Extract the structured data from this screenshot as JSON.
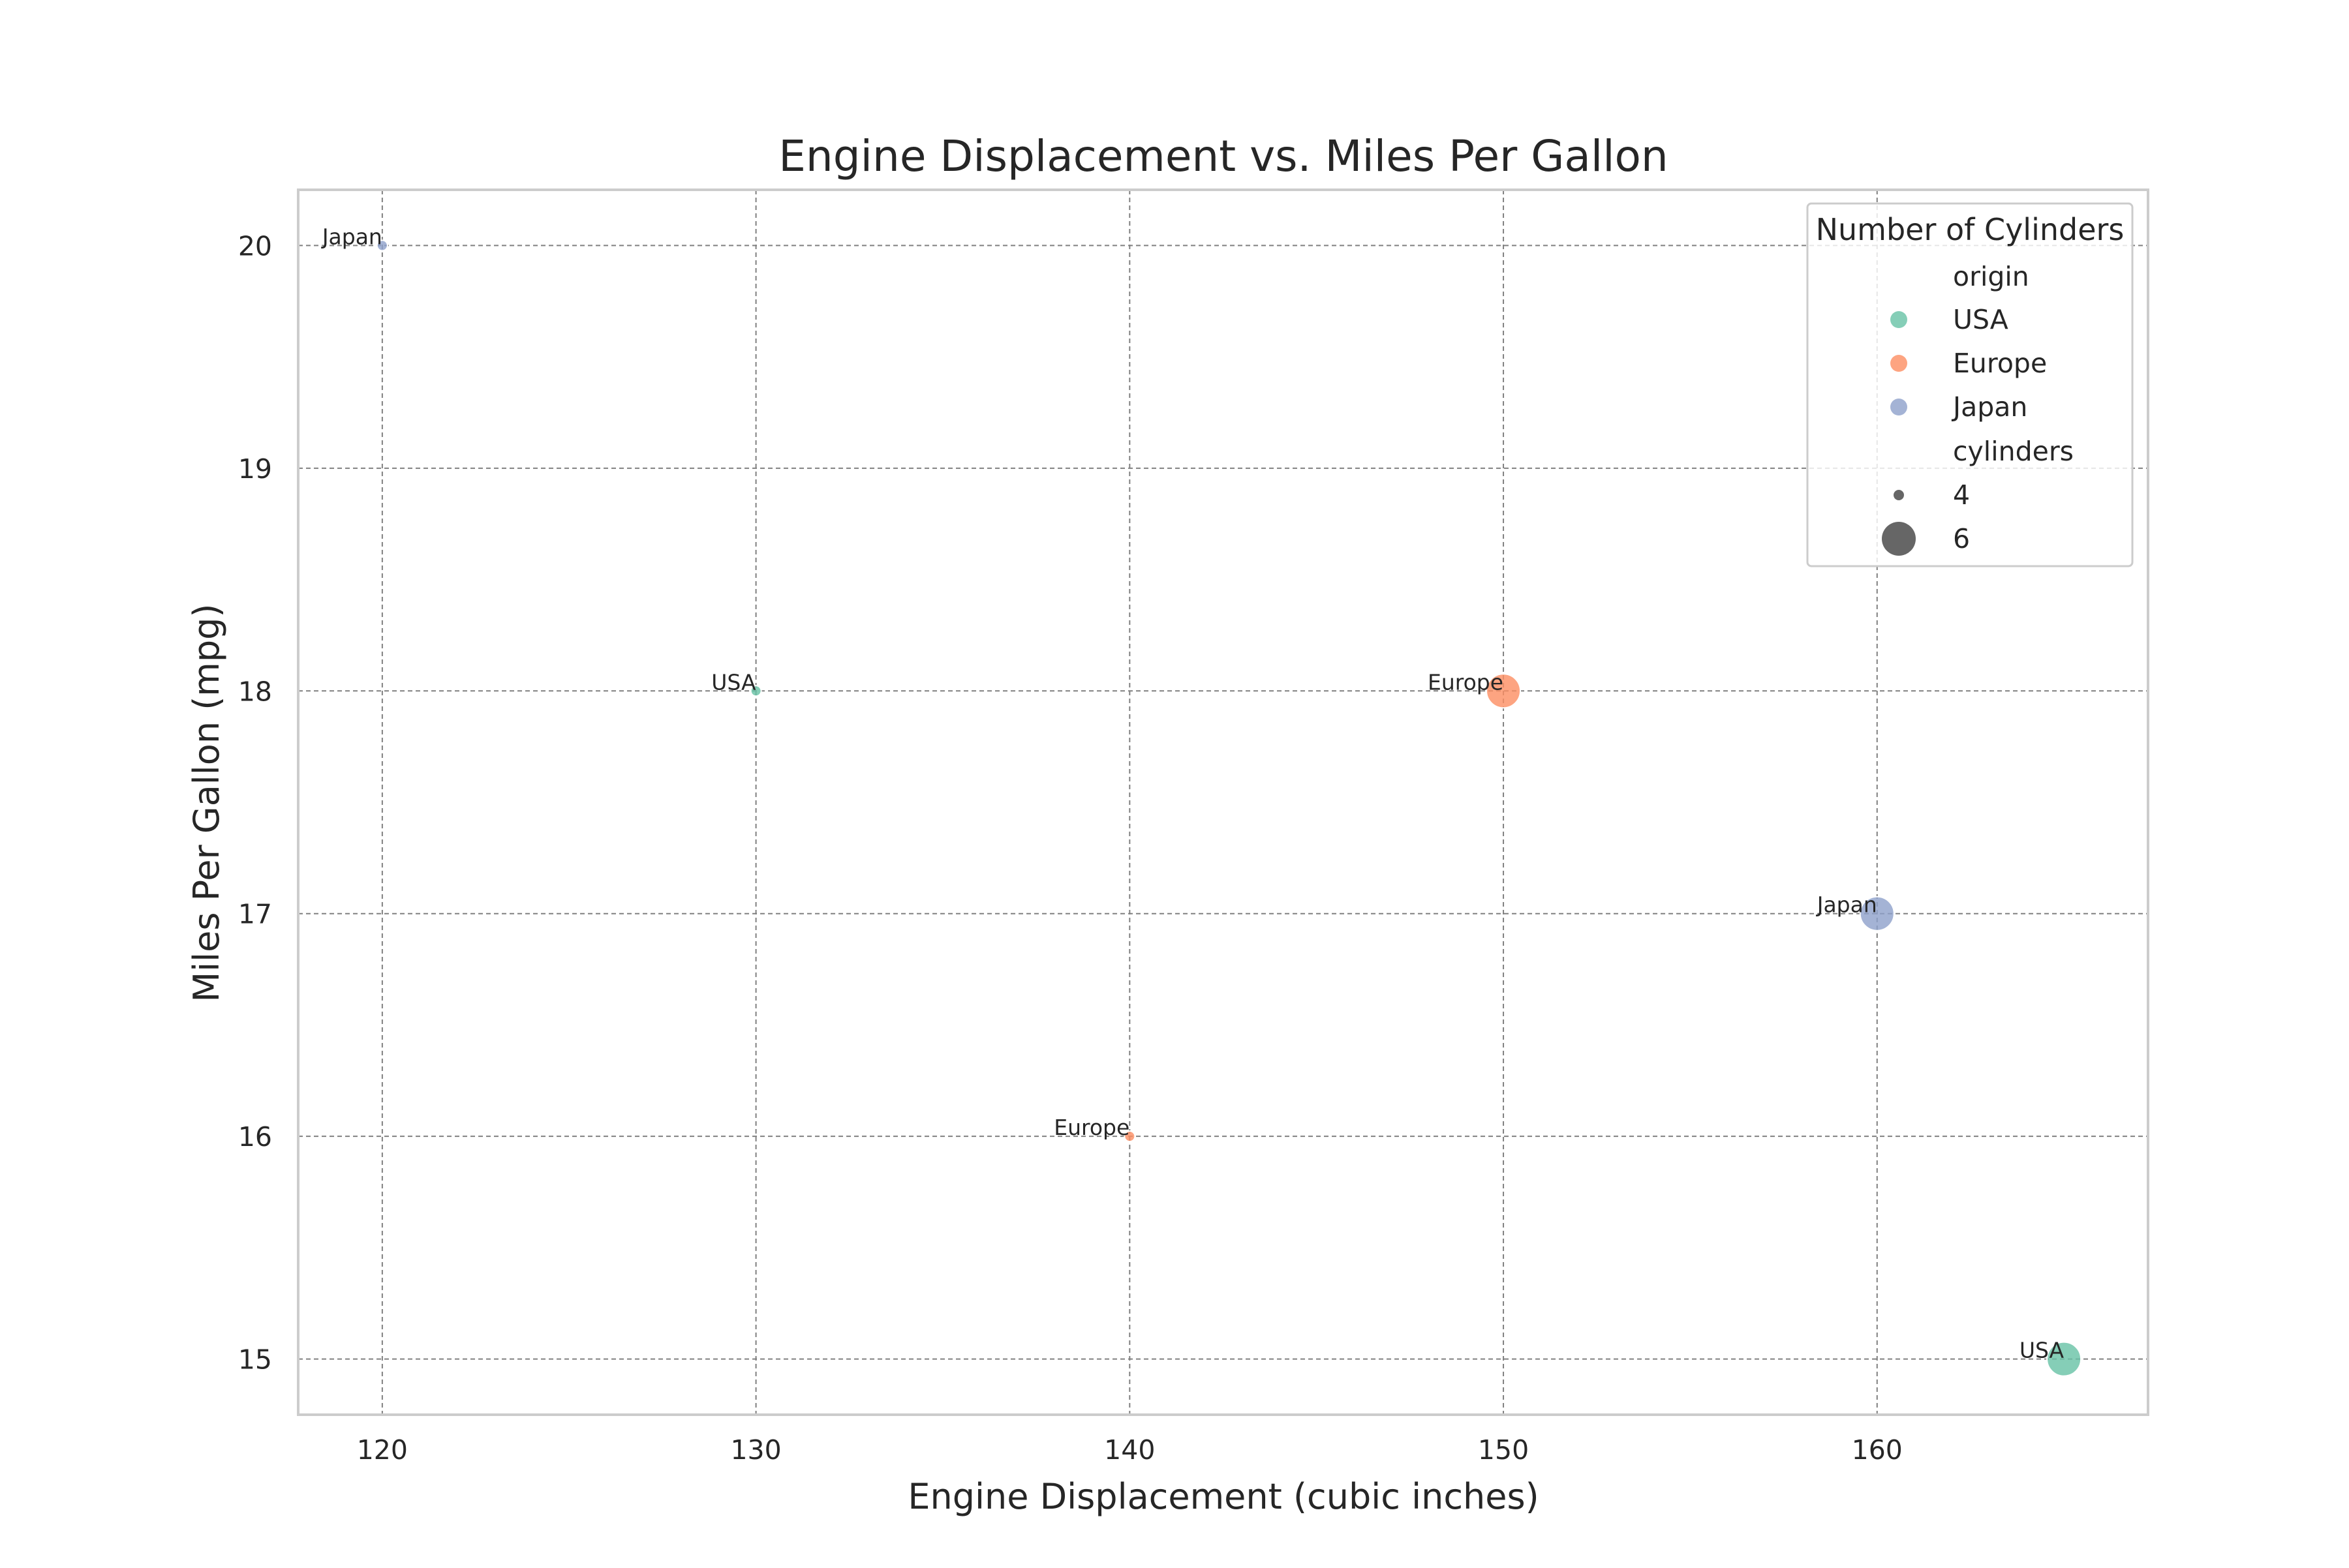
{
  "chart_data": {
    "type": "scatter",
    "title": "Engine Displacement vs. Miles Per Gallon",
    "xlabel": "Engine Displacement (cubic inches)",
    "ylabel": "Miles Per Gallon (mpg)",
    "xlim": [
      117.75,
      167.25
    ],
    "ylim": [
      14.75,
      20.25
    ],
    "xticks": [
      120,
      130,
      140,
      150,
      160
    ],
    "yticks": [
      15,
      16,
      17,
      18,
      19,
      20
    ],
    "grid": true,
    "points": [
      {
        "displacement": 120,
        "mpg": 20,
        "origin": "Japan",
        "cylinders": 4,
        "label": "Japan"
      },
      {
        "displacement": 130,
        "mpg": 18,
        "origin": "USA",
        "cylinders": 4,
        "label": "USA"
      },
      {
        "displacement": 140,
        "mpg": 16,
        "origin": "Europe",
        "cylinders": 4,
        "label": "Europe"
      },
      {
        "displacement": 150,
        "mpg": 18,
        "origin": "Europe",
        "cylinders": 6,
        "label": "Europe"
      },
      {
        "displacement": 160,
        "mpg": 17,
        "origin": "Japan",
        "cylinders": 6,
        "label": "Japan"
      },
      {
        "displacement": 165,
        "mpg": 15,
        "origin": "USA",
        "cylinders": 6,
        "label": "USA"
      }
    ],
    "legend": {
      "title": "Number of Cylinders",
      "placement": "top-right",
      "hue_title": "origin",
      "hue_entries": [
        {
          "label": "USA",
          "color": "#66c2a5"
        },
        {
          "label": "Europe",
          "color": "#fc8d62"
        },
        {
          "label": "Japan",
          "color": "#8da0cb"
        }
      ],
      "size_title": "cylinders",
      "size_entries": [
        {
          "label": "4",
          "cylinders": 4
        },
        {
          "label": "6",
          "cylinders": 6
        }
      ]
    },
    "colors": {
      "USA": "#66c2a5",
      "Europe": "#fc8d62",
      "Japan": "#8da0cb",
      "size_marker": "#555555"
    }
  }
}
